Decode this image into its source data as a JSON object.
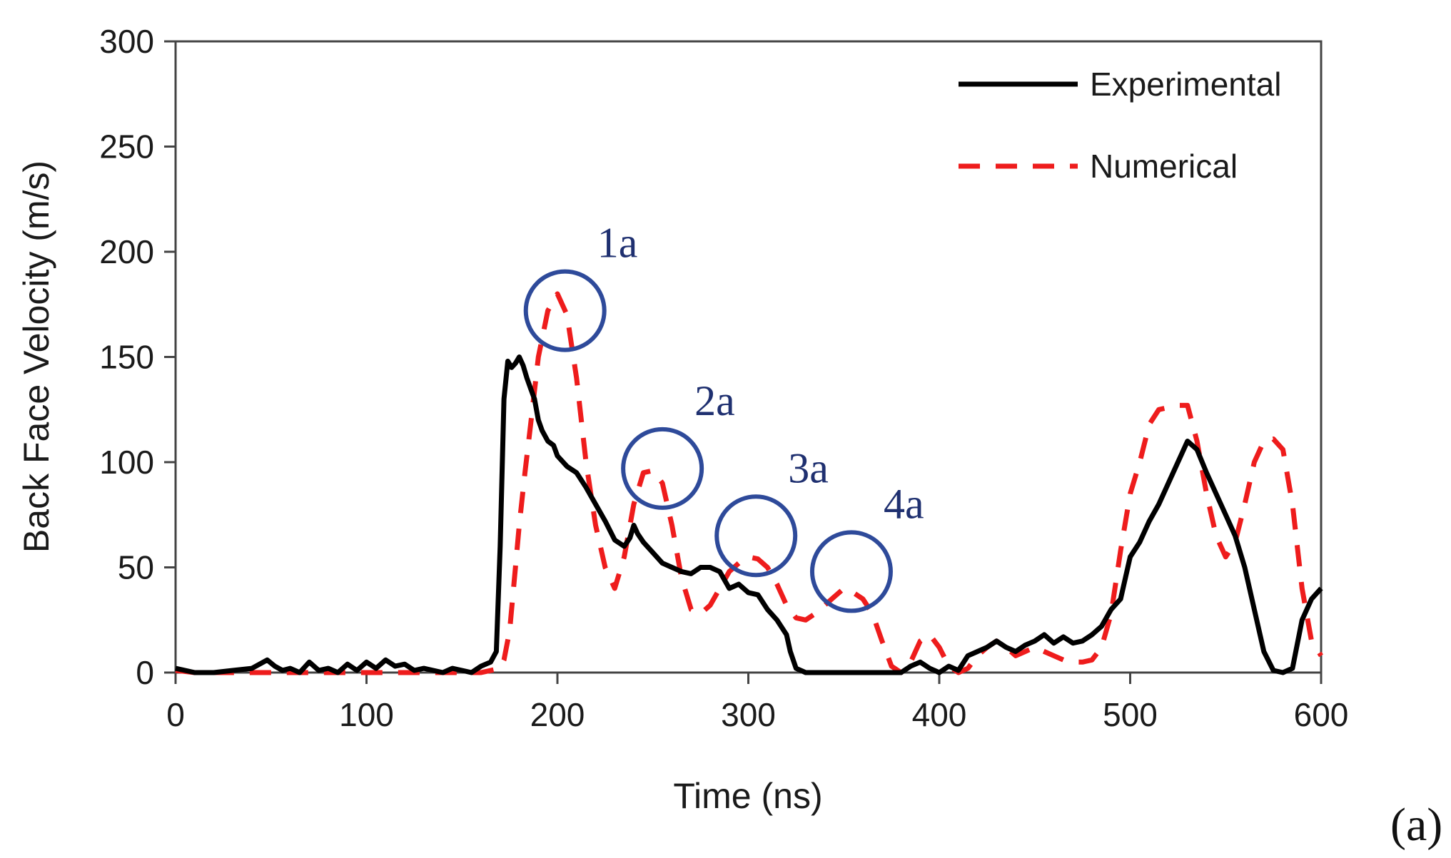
{
  "chart_data": {
    "type": "line",
    "title": "",
    "xlabel": "Time (ns)",
    "ylabel": "Back Face Velocity  (m/s)",
    "xlim": [
      0,
      600
    ],
    "ylim": [
      0,
      300
    ],
    "xticks": [
      0,
      100,
      200,
      300,
      400,
      500,
      600
    ],
    "yticks": [
      0,
      50,
      100,
      150,
      200,
      250,
      300
    ],
    "grid": false,
    "legend_position": "top-right",
    "series": [
      {
        "name": "Experimental",
        "style": "solid",
        "color": "#000000",
        "x": [
          0,
          5,
          10,
          20,
          30,
          40,
          48,
          52,
          56,
          60,
          65,
          70,
          75,
          80,
          85,
          90,
          95,
          100,
          105,
          110,
          115,
          120,
          125,
          130,
          135,
          140,
          145,
          150,
          155,
          160,
          165,
          168,
          170,
          172,
          174,
          176,
          178,
          180,
          182,
          184,
          186,
          188,
          190,
          192,
          195,
          198,
          200,
          205,
          210,
          215,
          220,
          225,
          230,
          235,
          238,
          240,
          242,
          245,
          250,
          255,
          260,
          265,
          270,
          275,
          280,
          285,
          290,
          295,
          300,
          305,
          310,
          315,
          320,
          322,
          325,
          330,
          340,
          350,
          360,
          370,
          380,
          385,
          390,
          395,
          400,
          405,
          410,
          415,
          420,
          425,
          430,
          435,
          440,
          445,
          450,
          455,
          460,
          465,
          470,
          475,
          480,
          485,
          490,
          495,
          500,
          505,
          510,
          515,
          520,
          525,
          530,
          535,
          540,
          545,
          550,
          555,
          560,
          565,
          570,
          575,
          580,
          585,
          590,
          595,
          600
        ],
        "y": [
          2,
          1,
          0,
          0,
          1,
          2,
          6,
          3,
          1,
          2,
          0,
          5,
          1,
          2,
          0,
          4,
          1,
          5,
          2,
          6,
          3,
          4,
          1,
          2,
          1,
          0,
          2,
          1,
          0,
          3,
          5,
          10,
          60,
          130,
          148,
          145,
          147,
          150,
          146,
          140,
          135,
          130,
          120,
          115,
          110,
          108,
          103,
          98,
          95,
          88,
          80,
          72,
          63,
          60,
          64,
          70,
          66,
          62,
          57,
          52,
          50,
          48,
          47,
          50,
          50,
          48,
          40,
          42,
          38,
          37,
          30,
          25,
          18,
          10,
          2,
          0,
          0,
          0,
          0,
          0,
          0,
          3,
          5,
          2,
          0,
          3,
          1,
          8,
          10,
          12,
          15,
          12,
          10,
          13,
          15,
          18,
          14,
          17,
          14,
          15,
          18,
          22,
          30,
          35,
          55,
          62,
          72,
          80,
          90,
          100,
          110,
          106,
          95,
          85,
          75,
          65,
          50,
          30,
          10,
          1,
          0,
          2,
          25,
          35,
          40
        ]
      },
      {
        "name": "Numerical",
        "style": "dashed",
        "color": "#ee1c1c",
        "x": [
          0,
          10,
          20,
          30,
          40,
          50,
          60,
          70,
          80,
          90,
          100,
          110,
          120,
          130,
          140,
          150,
          160,
          170,
          172,
          175,
          178,
          180,
          183,
          186,
          190,
          195,
          200,
          205,
          210,
          215,
          220,
          225,
          230,
          235,
          240,
          245,
          250,
          255,
          260,
          265,
          270,
          275,
          280,
          285,
          290,
          295,
          300,
          305,
          310,
          315,
          320,
          325,
          330,
          335,
          340,
          345,
          350,
          355,
          360,
          365,
          370,
          375,
          380,
          385,
          390,
          395,
          400,
          405,
          410,
          415,
          420,
          425,
          430,
          435,
          440,
          445,
          450,
          455,
          460,
          465,
          470,
          475,
          480,
          485,
          490,
          495,
          500,
          505,
          510,
          515,
          520,
          525,
          530,
          535,
          540,
          545,
          550,
          555,
          560,
          565,
          570,
          575,
          580,
          585,
          590,
          595,
          600
        ],
        "y": [
          1,
          0,
          0,
          0,
          0,
          0,
          0,
          0,
          0,
          0,
          0,
          0,
          0,
          0,
          0,
          0,
          0,
          2,
          6,
          20,
          50,
          70,
          95,
          118,
          150,
          172,
          180,
          170,
          140,
          100,
          70,
          50,
          40,
          55,
          80,
          95,
          96,
          90,
          70,
          45,
          30,
          28,
          32,
          40,
          48,
          52,
          55,
          54,
          50,
          42,
          32,
          26,
          25,
          28,
          32,
          36,
          40,
          38,
          35,
          28,
          15,
          3,
          0,
          5,
          15,
          18,
          12,
          3,
          0,
          2,
          8,
          12,
          15,
          12,
          8,
          10,
          12,
          10,
          8,
          6,
          5,
          5,
          6,
          12,
          28,
          58,
          85,
          100,
          118,
          125,
          126,
          127,
          127,
          110,
          85,
          65,
          55,
          62,
          80,
          100,
          110,
          111,
          106,
          80,
          40,
          15,
          8
        ]
      }
    ],
    "annotations": [
      {
        "label": "1a",
        "x": 204,
        "y": 172
      },
      {
        "label": "2a",
        "x": 255,
        "y": 97
      },
      {
        "label": "3a",
        "x": 304,
        "y": 65
      },
      {
        "label": "4a",
        "x": 354,
        "y": 48
      }
    ],
    "panel_label": "(a)"
  }
}
